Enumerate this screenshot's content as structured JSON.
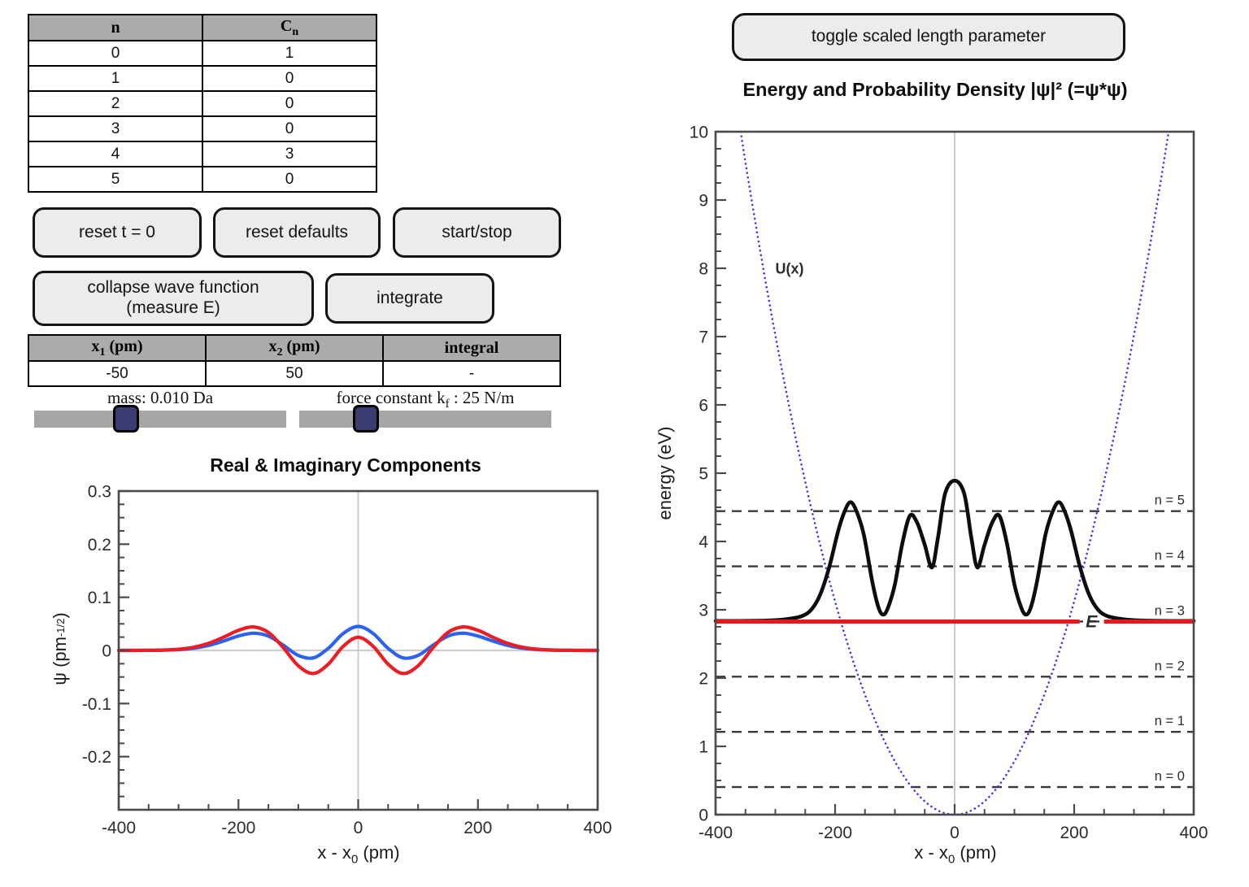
{
  "controls": {
    "coefficient_table": {
      "headers": [
        [
          {
            "t": "n"
          }
        ],
        [
          {
            "t": "C"
          },
          {
            "s": "n"
          }
        ]
      ],
      "rows": [
        [
          "0",
          "1"
        ],
        [
          "1",
          "0"
        ],
        [
          "2",
          "0"
        ],
        [
          "3",
          "0"
        ],
        [
          "4",
          "3"
        ],
        [
          "5",
          "0"
        ]
      ]
    },
    "buttons": {
      "reset_t": "reset t = 0",
      "reset_defaults": "reset defaults",
      "start_stop": "start/stop",
      "collapse": "collapse wave function (measure E)",
      "integrate": "integrate",
      "toggle_scaled": "toggle scaled length parameter"
    },
    "integral_table": {
      "headers": [
        [
          {
            "t": "x"
          },
          {
            "s": "1"
          },
          {
            "t": " (pm)"
          }
        ],
        [
          {
            "t": "x"
          },
          {
            "s": "2"
          },
          {
            "t": " (pm)"
          }
        ],
        [
          {
            "t": "integral"
          }
        ]
      ],
      "rows": [
        [
          "-50",
          "50",
          "-"
        ]
      ]
    },
    "sliders": {
      "mass": {
        "label_pre": "mass: 0.010 Da",
        "label_sub": "",
        "label_post": "",
        "fraction": 0.36
      },
      "force": {
        "label_pre": "force constant k",
        "label_sub": "f",
        "label_post": " : 25 N/m",
        "fraction": 0.26
      }
    }
  },
  "chart_data": [
    {
      "type": "line",
      "title": "Real & Imaginary Components",
      "xlabel_parts": {
        "pre": "x - x",
        "sub": "0",
        "post": " (pm)"
      },
      "ylabel_parts": {
        "pre": "ψ (pm",
        "sup": "-1/2",
        "post": ")"
      },
      "xlim": [
        -400,
        400
      ],
      "ylim": [
        -0.3,
        0.3
      ],
      "grid_x": [
        0
      ],
      "grid_y": [
        0
      ],
      "grid_color": "#cccccc",
      "ticks": {
        "x_major": [
          {
            "v": -400,
            "t": "-400"
          },
          {
            "v": -200,
            "t": "-200"
          },
          {
            "v": 0,
            "t": "0"
          },
          {
            "v": 200,
            "t": "200"
          },
          {
            "v": 400,
            "t": "400"
          }
        ],
        "x_minor_step": 50,
        "y_major": [
          {
            "v": 0.3,
            "t": "0.3"
          },
          {
            "v": 0.2,
            "t": "0.2"
          },
          {
            "v": 0.1,
            "t": "0.1"
          },
          {
            "v": 0,
            "t": "0"
          },
          {
            "v": -0.1,
            "t": "-0.1"
          },
          {
            "v": -0.2,
            "t": "-0.2"
          }
        ],
        "y_minor_step": 0.025
      },
      "series": [
        {
          "name": "imaginary component",
          "color": "#2b62f0",
          "width": 4.2,
          "x": [
            -400,
            -375,
            -350,
            -325,
            -300,
            -275,
            -250,
            -225,
            -200,
            -175,
            -150,
            -125,
            -100,
            -75,
            -50,
            -25,
            0,
            25,
            50,
            75,
            100,
            125,
            150,
            175,
            200,
            225,
            250,
            275,
            300,
            325,
            350,
            375,
            400
          ],
          "y": [
            0,
            0,
            0.0001,
            0.0005,
            0.0015,
            0.0041,
            0.0093,
            0.0176,
            0.0271,
            0.0324,
            0.027,
            0.0098,
            -0.0095,
            -0.0141,
            0.0039,
            0.0318,
            0.0452,
            0.0318,
            0.0039,
            -0.0141,
            -0.0095,
            0.0098,
            0.027,
            0.0324,
            0.0271,
            0.0176,
            0.0093,
            0.0041,
            0.0015,
            0.0005,
            0.0001,
            0,
            0
          ]
        },
        {
          "name": "real component",
          "color": "#ec1d24",
          "width": 4.2,
          "x": [
            -400,
            -375,
            -350,
            -325,
            -300,
            -275,
            -250,
            -225,
            -200,
            -175,
            -150,
            -125,
            -100,
            -75,
            -50,
            -25,
            0,
            25,
            50,
            75,
            100,
            125,
            150,
            175,
            200,
            225,
            250,
            275,
            300,
            325,
            350,
            375,
            400
          ],
          "y": [
            0,
            0,
            0.0002,
            0.0007,
            0.0022,
            0.0058,
            0.0132,
            0.0248,
            0.0378,
            0.0442,
            0.0339,
            0.005,
            -0.0289,
            -0.0434,
            -0.0259,
            0.0078,
            0.0247,
            0.0078,
            -0.0259,
            -0.0434,
            -0.0289,
            0.005,
            0.0339,
            0.0442,
            0.0378,
            0.0248,
            0.0132,
            0.0058,
            0.0022,
            0.0007,
            0.0002,
            0,
            0
          ]
        }
      ]
    },
    {
      "type": "line",
      "title": "Energy and Probability Density |ψ|² (=ψ*ψ)",
      "xlabel_parts": {
        "pre": "x - x",
        "sub": "0",
        "post": " (pm)"
      },
      "ylabel_parts": {
        "pre": "energy (eV)",
        "sup": "",
        "post": ""
      },
      "xlim": [
        -400,
        400
      ],
      "ylim": [
        0,
        10
      ],
      "grid_x": [
        0
      ],
      "grid_y": [],
      "grid_color": "#cccccc",
      "ticks": {
        "x_major": [
          {
            "v": -400,
            "t": "-400"
          },
          {
            "v": -200,
            "t": "-200"
          },
          {
            "v": 0,
            "t": "0"
          },
          {
            "v": 200,
            "t": "200"
          },
          {
            "v": 400,
            "t": "400"
          }
        ],
        "x_minor_step": 50,
        "y_major": [
          {
            "v": 0,
            "t": "0"
          },
          {
            "v": 1,
            "t": "1"
          },
          {
            "v": 2,
            "t": "2"
          },
          {
            "v": 3,
            "t": "3"
          },
          {
            "v": 4,
            "t": "4"
          },
          {
            "v": 5,
            "t": "5"
          },
          {
            "v": 6,
            "t": "6"
          },
          {
            "v": 7,
            "t": "7"
          },
          {
            "v": 8,
            "t": "8"
          },
          {
            "v": 9,
            "t": "9"
          },
          {
            "v": 10,
            "t": "10"
          }
        ],
        "y_minor_step": 0.25
      },
      "energy_levels": {
        "color": "#383838",
        "width": 2.4,
        "dash": "12 8",
        "label_x": 385,
        "label_dy": -8,
        "lines": [
          {
            "label": "n = 0",
            "E": 0.404
          },
          {
            "label": "n = 1",
            "E": 1.212
          },
          {
            "label": "n = 2",
            "E": 2.02
          },
          {
            "label": "n = 3",
            "E": 2.828
          },
          {
            "label": "n = 4",
            "E": 3.636
          },
          {
            "label": "n = 5",
            "E": 4.444
          }
        ]
      },
      "potential": {
        "label": "U(x)",
        "coeff_eV_per_pm2": 7.8e-05,
        "color": "#3c3cec",
        "width": 2.6,
        "dot_dash": "0.1 5.6",
        "label_x": -300,
        "label_E": 7.92
      },
      "density": {
        "name": "probability density |ψ|² offset to E",
        "color": "#0d0d0d",
        "width": 4.6,
        "x": [
          -400,
          -360,
          -320,
          -295,
          -275,
          -255,
          -240,
          -225,
          -210,
          -195,
          -185,
          -175,
          -165,
          -152,
          -138,
          -128,
          -120,
          -112,
          -100,
          -88,
          -75,
          -63,
          -50,
          -38,
          -28,
          -16,
          0,
          16,
          28,
          38,
          50,
          63,
          75,
          88,
          100,
          112,
          120,
          128,
          138,
          152,
          165,
          175,
          185,
          195,
          210,
          225,
          240,
          255,
          275,
          295,
          320,
          360,
          400
        ],
        "E": [
          2.836,
          2.836,
          2.84,
          2.85,
          2.87,
          2.91,
          3.0,
          3.22,
          3.62,
          4.15,
          4.42,
          4.575,
          4.46,
          4.1,
          3.42,
          3.05,
          2.93,
          3.02,
          3.37,
          3.95,
          4.375,
          4.28,
          3.95,
          3.62,
          4.05,
          4.7,
          4.89,
          4.7,
          4.05,
          3.62,
          3.95,
          4.28,
          4.375,
          3.95,
          3.37,
          3.02,
          2.93,
          3.05,
          3.42,
          4.1,
          4.46,
          4.575,
          4.42,
          4.15,
          3.62,
          3.22,
          3.0,
          2.91,
          2.87,
          2.85,
          2.84,
          2.836,
          2.836
        ]
      },
      "E_marker": {
        "label": "E",
        "value": 2.828,
        "color": "#e9161c",
        "width": 5,
        "segments": [
          [
            -400,
            209
          ],
          [
            250,
            400
          ]
        ],
        "label_x": 229
      }
    }
  ]
}
